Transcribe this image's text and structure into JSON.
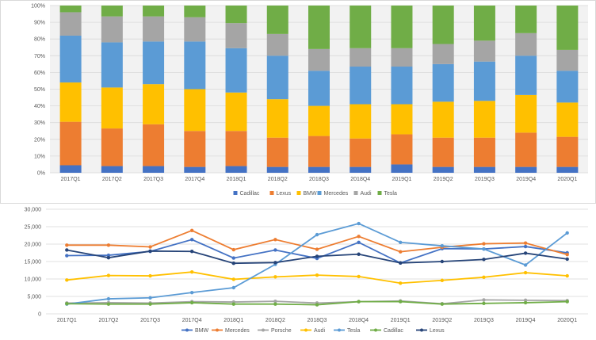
{
  "chart_data": [
    {
      "type": "bar",
      "stacked": true,
      "percent": true,
      "title": "",
      "xlabel": "",
      "ylabel": "",
      "ylim": [
        0,
        100
      ],
      "y_ticks": [
        "0%",
        "10%",
        "20%",
        "30%",
        "40%",
        "50%",
        "60%",
        "70%",
        "80%",
        "90%",
        "100%"
      ],
      "grid": true,
      "legend_position": "bottom",
      "categories": [
        "2017Q1",
        "2017Q2",
        "2017Q3",
        "2017Q4",
        "2018Q1",
        "2018Q2",
        "2018Q3",
        "2018Q4",
        "2019Q1",
        "2019Q2",
        "2019Q3",
        "2019Q4",
        "2020Q1"
      ],
      "series": [
        {
          "name": "Cadillac",
          "color": "#4472c4",
          "values": [
            4.5,
            4,
            4,
            3.5,
            4,
            3.5,
            3.5,
            3.5,
            5,
            3.5,
            3.5,
            3.5,
            3.5
          ]
        },
        {
          "name": "Lexus",
          "color": "#ed7d31",
          "values": [
            26,
            22.5,
            25,
            21.5,
            21,
            17.5,
            18.5,
            17,
            18,
            17.5,
            17.5,
            20.5,
            18
          ]
        },
        {
          "name": "BMW",
          "color": "#ffc000",
          "values": [
            23.5,
            24.5,
            24,
            25,
            23,
            23,
            18,
            20.5,
            18,
            21.5,
            22,
            22.5,
            20.5
          ]
        },
        {
          "name": "Mercedes",
          "color": "#5b9bd5",
          "values": [
            28,
            27,
            25.5,
            28.5,
            26.5,
            26,
            21,
            22.5,
            22.5,
            22.5,
            23.5,
            23.5,
            19
          ]
        },
        {
          "name": "Audi",
          "color": "#a5a5a5",
          "values": [
            14,
            15.5,
            15,
            14.5,
            15,
            13,
            13,
            11,
            11,
            12,
            12.5,
            13.5,
            12.5
          ]
        },
        {
          "name": "Tesla",
          "color": "#70ad47",
          "values": [
            4,
            6.5,
            6.5,
            7,
            10.5,
            17,
            26,
            25.5,
            25.5,
            23,
            21,
            16.5,
            26.5
          ]
        }
      ]
    },
    {
      "type": "line",
      "title": "",
      "xlabel": "",
      "ylabel": "",
      "ylim": [
        0,
        30000
      ],
      "y_ticks": [
        "0",
        "5,000",
        "10,000",
        "15,000",
        "20,000",
        "25,000",
        "30,000"
      ],
      "grid": true,
      "legend_position": "bottom",
      "categories": [
        "2017Q1",
        "2017Q2",
        "2017Q3",
        "2017Q4",
        "2018Q1",
        "2018Q2",
        "2018Q3",
        "2018Q4",
        "2019Q1",
        "2019Q2",
        "2019Q3",
        "2019Q4",
        "2020Q1"
      ],
      "series": [
        {
          "name": "BMW",
          "color": "#4472c4",
          "values": [
            16700,
            16800,
            17900,
            21300,
            16000,
            18300,
            15900,
            20500,
            14600,
            18700,
            18600,
            19300,
            17500
          ]
        },
        {
          "name": "Mercedes",
          "color": "#ed7d31",
          "values": [
            19700,
            19700,
            19200,
            23900,
            18400,
            21300,
            18500,
            22200,
            17800,
            19100,
            20100,
            20300,
            17000
          ]
        },
        {
          "name": "Porsche",
          "color": "#a5a5a5",
          "values": [
            3100,
            3200,
            3100,
            3500,
            3400,
            3600,
            3100,
            3500,
            3700,
            2900,
            4000,
            3900,
            3800
          ]
        },
        {
          "name": "Audi",
          "color": "#ffc000",
          "values": [
            9700,
            11000,
            10900,
            12000,
            9900,
            10600,
            11100,
            10700,
            8800,
            9600,
            10500,
            11800,
            10900
          ]
        },
        {
          "name": "Tesla",
          "color": "#5b9bd5",
          "values": [
            2800,
            4300,
            4600,
            6100,
            7500,
            14200,
            22700,
            25900,
            20500,
            19500,
            18600,
            14000,
            23200
          ]
        },
        {
          "name": "Cadillac",
          "color": "#70ad47",
          "values": [
            2900,
            2800,
            2800,
            3200,
            2800,
            2800,
            2600,
            3500,
            3500,
            2800,
            3000,
            3200,
            3500
          ]
        },
        {
          "name": "Lexus",
          "color": "#264478",
          "values": [
            18300,
            16100,
            18000,
            17900,
            14500,
            14700,
            16500,
            17100,
            14600,
            15000,
            15600,
            17400,
            15700
          ]
        }
      ]
    }
  ]
}
